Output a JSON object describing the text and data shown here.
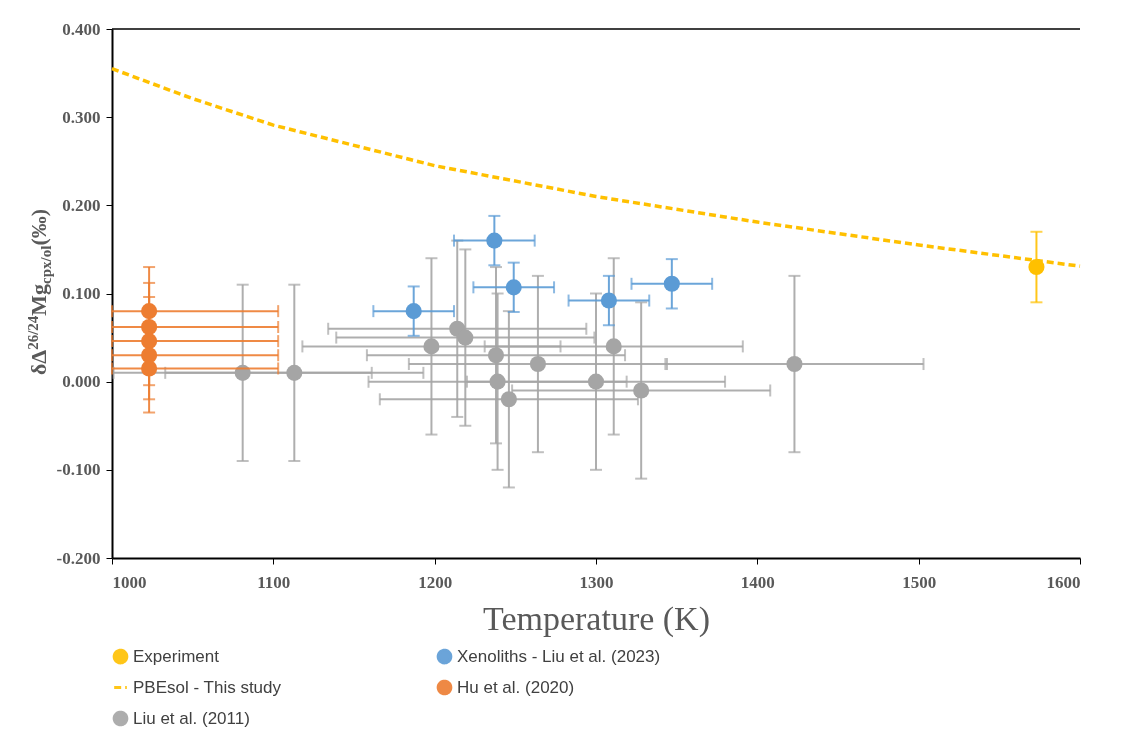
{
  "chart_data": {
    "type": "scatter",
    "xlabel": "Temperature (K)",
    "ylabel": "δΔ$^{26/24}$Mg$_{cpx/ol}$(‰)",
    "xlim": [
      1000,
      1600
    ],
    "xticks": [
      1000,
      1100,
      1200,
      1300,
      1400,
      1500,
      1600
    ],
    "ylim": [
      -0.2,
      0.4
    ],
    "yticks": [
      {
        "value": -0.2,
        "label": "-0.200"
      },
      {
        "value": -0.1,
        "label": "-0.100"
      },
      {
        "value": 0,
        "label": "0.000"
      },
      {
        "value": 0.1,
        "label": "0.100"
      },
      {
        "value": 0.2,
        "label": "0.200"
      },
      {
        "value": 0.3,
        "label": "0.300"
      },
      {
        "value": 0.4,
        "label": "0.400"
      }
    ],
    "grid": false,
    "legend": "bottom",
    "marker": "circle",
    "series": [
      {
        "name": "Experiment",
        "color": "#ffc000",
        "x": [
          1573
        ],
        "values": [
          0.13
        ],
        "errors": [
          0.04
        ]
      },
      {
        "name": "PBEsol - This study",
        "type": "line",
        "color": "#ffc000",
        "line_style": "dashed",
        "marker": "none",
        "x": [
          1000,
          1050,
          1100,
          1200,
          1300,
          1400,
          1500,
          1600
        ],
        "values": [
          0.355,
          0.321,
          0.291,
          0.245,
          0.21,
          0.181,
          0.155,
          0.131
        ]
      },
      {
        "name": "Liu et al. (2011)",
        "color": "#a5a5a5",
        "x": [
          1081,
          1113,
          1198,
          1214,
          1219,
          1238,
          1239,
          1246,
          1264,
          1300,
          1311,
          1328,
          1423
        ],
        "values": [
          0.01,
          0.01,
          0.04,
          0.06,
          0.05,
          0.03,
          0,
          -0.02,
          0.02,
          0,
          0.04,
          -0.01,
          0.02
        ],
        "errors": [
          0.1,
          0.1,
          0.1,
          0.1,
          0.1,
          0.1,
          0.1,
          0.1,
          0.1,
          0.1,
          0.1,
          0.1,
          0.1
        ],
        "xerrors": [
          80,
          80,
          80,
          80,
          80,
          80,
          80,
          80,
          80,
          80,
          80,
          80,
          80
        ]
      },
      {
        "name": "Xenoliths - Liu et al. (2023)",
        "color": "#5b9bd5",
        "x": [
          1187,
          1237,
          1249,
          1308,
          1347
        ],
        "values": [
          0.08,
          0.16,
          0.107,
          0.092,
          0.111
        ],
        "errors": [
          0.028,
          0.028,
          0.028,
          0.028,
          0.028
        ],
        "xerrors": [
          25,
          25,
          25,
          25,
          25
        ]
      },
      {
        "name": "Hu et al. (2020)",
        "color": "#ed7d31",
        "x": [
          1023,
          1023,
          1023,
          1023,
          1023
        ],
        "values": [
          0.08,
          0.062,
          0.046,
          0.03,
          0.015
        ],
        "errors": [
          0.05,
          0.05,
          0.05,
          0.05,
          0.05
        ],
        "xerrors": [
          [
            1000,
            1103
          ],
          [
            1000,
            1103
          ],
          [
            1000,
            1103
          ],
          [
            1000,
            1103
          ],
          [
            1000,
            1103
          ]
        ]
      }
    ]
  }
}
